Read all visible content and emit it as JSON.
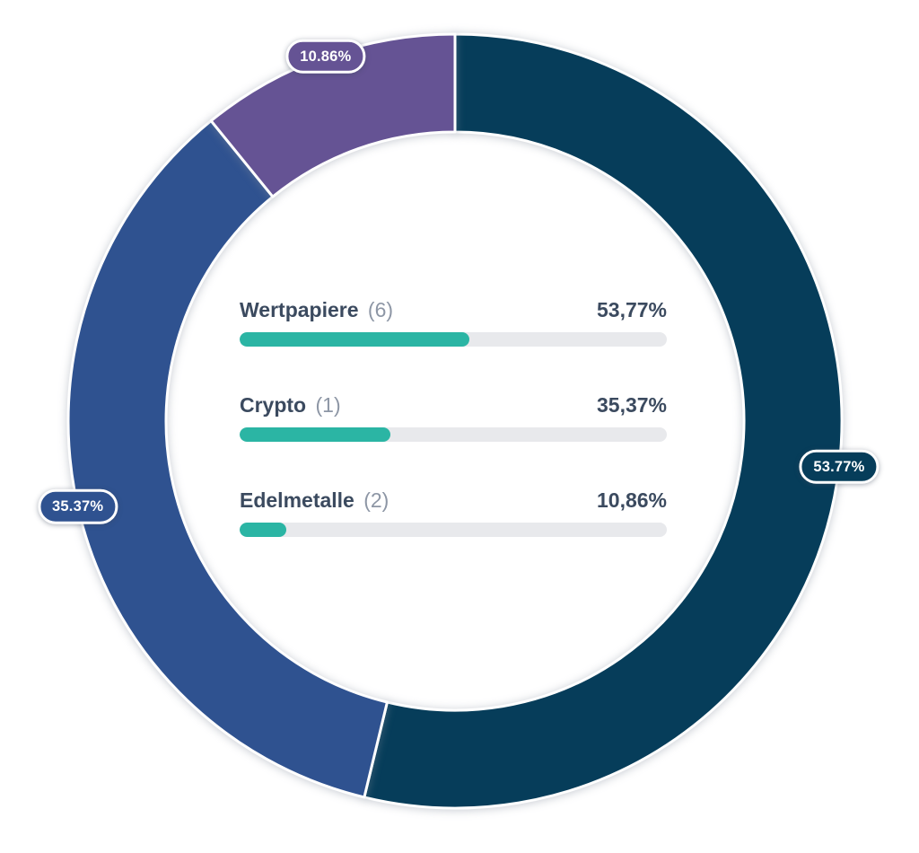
{
  "chart_data": {
    "type": "donut",
    "title": "",
    "unit": "%",
    "total_percent": 100,
    "series": [
      {
        "label": "Wertpapiere",
        "count_label": "(6)",
        "value": 53.77,
        "value_label": "53,77%",
        "badge_label": "53.77%",
        "color": "#063d5a"
      },
      {
        "label": "Crypto",
        "count_label": "(1)",
        "value": 35.37,
        "value_label": "35,37%",
        "badge_label": "35.37%",
        "color": "#2f5290"
      },
      {
        "label": "Edelmetalle",
        "count_label": "(2)",
        "value": 10.86,
        "value_label": "10,86%",
        "badge_label": "10.86%",
        "color": "#655394"
      }
    ],
    "legend": {
      "position": "center-of-donut",
      "bar_fill_color": "#2bb5a4",
      "bar_track_color": "#e8e9ec"
    },
    "layout_hints": {
      "start_angle_deg": 0,
      "direction": "clockwise",
      "badge_position": "outer-edge-mid-angle",
      "grid": false
    }
  }
}
